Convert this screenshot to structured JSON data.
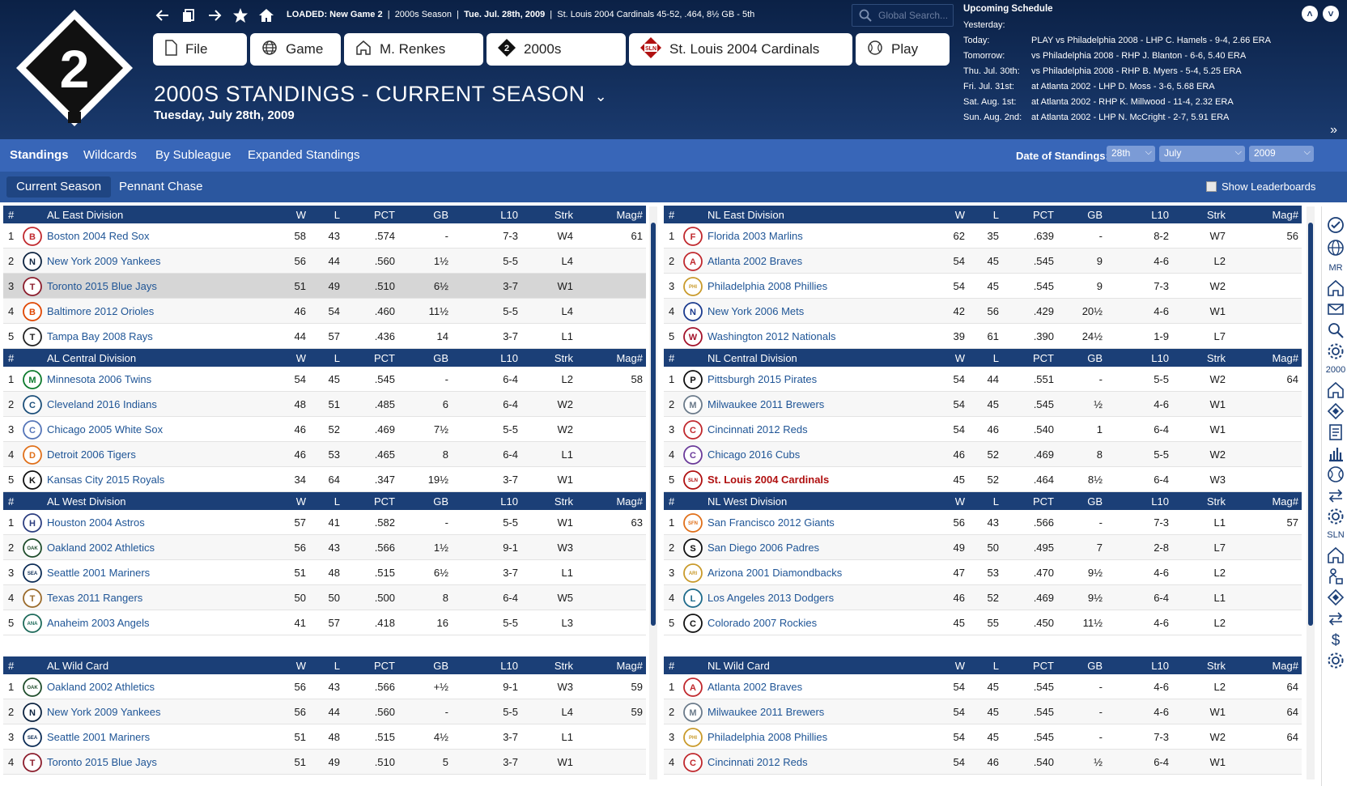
{
  "header": {
    "loaded_label": "LOADED:",
    "loaded_game": "New Game 2",
    "season_text": "2000s  Season",
    "date_text": "Tue. Jul. 28th, 2009",
    "team_record": "St. Louis 2004 Cardinals  45-52, .464, 8½ GB - 5th",
    "search_placeholder": "Global Search...",
    "logo_number": "2",
    "toolbar": [
      "File",
      "Game",
      "M. Renkes",
      "2000s",
      "St. Louis 2004 Cardinals",
      "Play"
    ],
    "page_title": "2000S  STANDINGS - CURRENT SEASON",
    "page_date": "Tuesday, July 28th, 2009"
  },
  "schedule": {
    "title": "Upcoming Schedule",
    "rows": [
      {
        "d": "Yesterday:",
        "g": ""
      },
      {
        "d": "Today:",
        "g": "PLAY vs Philadelphia 2008 - LHP C. Hamels - 9-4, 2.66 ERA"
      },
      {
        "d": "Tomorrow:",
        "g": "vs Philadelphia 2008 - RHP J. Blanton - 6-6, 5.40 ERA"
      },
      {
        "d": "Thu. Jul. 30th:",
        "g": "vs Philadelphia 2008 - RHP B. Myers - 5-4, 5.25 ERA"
      },
      {
        "d": "Fri. Jul. 31st:",
        "g": "at Atlanta 2002 - LHP D. Moss - 3-6, 5.68 ERA"
      },
      {
        "d": "Sat. Aug. 1st:",
        "g": "at Atlanta 2002 - RHP K. Millwood - 11-4, 2.32 ERA"
      },
      {
        "d": "Sun. Aug. 2nd:",
        "g": "at Atlanta 2002 - LHP N. McCright - 2-7, 5.91 ERA"
      }
    ]
  },
  "tabs": {
    "items": [
      "Standings",
      "Wildcards",
      "By Subleague",
      "Expanded Standings"
    ],
    "date_label": "Date of Standings:",
    "day": "28th",
    "month": "July",
    "year": "2009"
  },
  "subtabs": {
    "current": "Current Season",
    "pennant": "Pennant Chase",
    "leaderboards": "Show Leaderboards"
  },
  "cols": {
    "num": "#",
    "w": "W",
    "l": "L",
    "pct": "PCT",
    "gb": "GB",
    "l10": "L10",
    "strk": "Strk",
    "mag": "Mag#"
  },
  "left": [
    {
      "name": "AL East Division",
      "teams": [
        {
          "n": "1",
          "t": "Boston 2004 Red Sox",
          "w": "58",
          "l": "43",
          "p": ".574",
          "gb": "-",
          "l10": "7-3",
          "s": "W4",
          "m": "61",
          "ab": "B",
          "c": "#c0282d"
        },
        {
          "n": "2",
          "t": "New York 2009 Yankees",
          "w": "56",
          "l": "44",
          "p": ".560",
          "gb": "1½",
          "l10": "5-5",
          "s": "L4",
          "m": "",
          "ab": "N",
          "c": "#0c2340"
        },
        {
          "n": "3",
          "t": "Toronto 2015 Blue Jays",
          "w": "51",
          "l": "49",
          "p": ".510",
          "gb": "6½",
          "l10": "3-7",
          "s": "W1",
          "m": "",
          "ab": "T",
          "c": "#8b1c2b",
          "hl": true
        },
        {
          "n": "4",
          "t": "Baltimore 2012 Orioles",
          "w": "46",
          "l": "54",
          "p": ".460",
          "gb": "11½",
          "l10": "5-5",
          "s": "L4",
          "m": "",
          "ab": "B",
          "c": "#df4601"
        },
        {
          "n": "5",
          "t": "Tampa Bay 2008 Rays",
          "w": "44",
          "l": "57",
          "p": ".436",
          "gb": "14",
          "l10": "3-7",
          "s": "L1",
          "m": "",
          "ab": "T",
          "c": "#222"
        }
      ]
    },
    {
      "name": "AL Central Division",
      "teams": [
        {
          "n": "1",
          "t": "Minnesota 2006 Twins",
          "w": "54",
          "l": "45",
          "p": ".545",
          "gb": "-",
          "l10": "6-4",
          "s": "L2",
          "m": "58",
          "ab": "M",
          "c": "#0c7a2c"
        },
        {
          "n": "2",
          "t": "Cleveland 2016 Indians",
          "w": "48",
          "l": "51",
          "p": ".485",
          "gb": "6",
          "l10": "6-4",
          "s": "W2",
          "m": "",
          "ab": "C",
          "c": "#1c4f7a"
        },
        {
          "n": "3",
          "t": "Chicago 2005 White Sox",
          "w": "46",
          "l": "52",
          "p": ".469",
          "gb": "7½",
          "l10": "5-5",
          "s": "W2",
          "m": "",
          "ab": "C",
          "c": "#5575b8"
        },
        {
          "n": "4",
          "t": "Detroit 2006 Tigers",
          "w": "46",
          "l": "53",
          "p": ".465",
          "gb": "8",
          "l10": "6-4",
          "s": "L1",
          "m": "",
          "ab": "D",
          "c": "#e0701a"
        },
        {
          "n": "5",
          "t": "Kansas City 2015 Royals",
          "w": "34",
          "l": "64",
          "p": ".347",
          "gb": "19½",
          "l10": "3-7",
          "s": "W1",
          "m": "",
          "ab": "K",
          "c": "#111"
        }
      ]
    },
    {
      "name": "AL West Division",
      "teams": [
        {
          "n": "1",
          "t": "Houston 2004 Astros",
          "w": "57",
          "l": "41",
          "p": ".582",
          "gb": "-",
          "l10": "5-5",
          "s": "W1",
          "m": "63",
          "ab": "H",
          "c": "#2c3e80"
        },
        {
          "n": "2",
          "t": "Oakland 2002 Athletics",
          "w": "56",
          "l": "43",
          "p": ".566",
          "gb": "1½",
          "l10": "9-1",
          "s": "W3",
          "m": "",
          "ab": "OAK",
          "c": "#1f4d2b"
        },
        {
          "n": "3",
          "t": "Seattle 2001 Mariners",
          "w": "51",
          "l": "48",
          "p": ".515",
          "gb": "6½",
          "l10": "3-7",
          "s": "L1",
          "m": "",
          "ab": "SEA",
          "c": "#0c2c56"
        },
        {
          "n": "4",
          "t": "Texas 2011 Rangers",
          "w": "50",
          "l": "50",
          "p": ".500",
          "gb": "8",
          "l10": "6-4",
          "s": "W5",
          "m": "",
          "ab": "T",
          "c": "#9a6a2a"
        },
        {
          "n": "5",
          "t": "Anaheim 2003 Angels",
          "w": "41",
          "l": "57",
          "p": ".418",
          "gb": "16",
          "l10": "5-5",
          "s": "L3",
          "m": "",
          "ab": "ANA",
          "c": "#1d6a5a"
        }
      ]
    },
    {
      "name": "AL  Wild Card",
      "gap": true,
      "teams": [
        {
          "n": "1",
          "t": "Oakland 2002 Athletics",
          "w": "56",
          "l": "43",
          "p": ".566",
          "gb": "+½",
          "l10": "9-1",
          "s": "W3",
          "m": "59",
          "ab": "OAK",
          "c": "#1f4d2b"
        },
        {
          "n": "2",
          "t": "New York 2009 Yankees",
          "w": "56",
          "l": "44",
          "p": ".560",
          "gb": "-",
          "l10": "5-5",
          "s": "L4",
          "m": "59",
          "ab": "N",
          "c": "#0c2340"
        },
        {
          "n": "3",
          "t": "Seattle 2001 Mariners",
          "w": "51",
          "l": "48",
          "p": ".515",
          "gb": "4½",
          "l10": "3-7",
          "s": "L1",
          "m": "",
          "ab": "SEA",
          "c": "#0c2c56"
        },
        {
          "n": "4",
          "t": "Toronto 2015 Blue Jays",
          "w": "51",
          "l": "49",
          "p": ".510",
          "gb": "5",
          "l10": "3-7",
          "s": "W1",
          "m": "",
          "ab": "T",
          "c": "#8b1c2b"
        }
      ]
    }
  ],
  "right": [
    {
      "name": "NL East Division",
      "teams": [
        {
          "n": "1",
          "t": "Florida 2003 Marlins",
          "w": "62",
          "l": "35",
          "p": ".639",
          "gb": "-",
          "l10": "8-2",
          "s": "W7",
          "m": "56",
          "ab": "F",
          "c": "#c0282d"
        },
        {
          "n": "2",
          "t": "Atlanta 2002 Braves",
          "w": "54",
          "l": "45",
          "p": ".545",
          "gb": "9",
          "l10": "4-6",
          "s": "L2",
          "m": "",
          "ab": "A",
          "c": "#c0282d"
        },
        {
          "n": "3",
          "t": "Philadelphia 2008 Phillies",
          "w": "54",
          "l": "45",
          "p": ".545",
          "gb": "9",
          "l10": "7-3",
          "s": "W2",
          "m": "",
          "ab": "PHI",
          "c": "#c99a2a"
        },
        {
          "n": "4",
          "t": "New York 2006 Mets",
          "w": "42",
          "l": "56",
          "p": ".429",
          "gb": "20½",
          "l10": "4-6",
          "s": "W1",
          "m": "",
          "ab": "N",
          "c": "#1a3a8e"
        },
        {
          "n": "5",
          "t": "Washington 2012 Nationals",
          "w": "39",
          "l": "61",
          "p": ".390",
          "gb": "24½",
          "l10": "1-9",
          "s": "L7",
          "m": "",
          "ab": "W",
          "c": "#a3122a"
        }
      ]
    },
    {
      "name": "NL Central Division",
      "teams": [
        {
          "n": "1",
          "t": "Pittsburgh 2015 Pirates",
          "w": "54",
          "l": "44",
          "p": ".551",
          "gb": "-",
          "l10": "5-5",
          "s": "W2",
          "m": "64",
          "ab": "P",
          "c": "#111"
        },
        {
          "n": "2",
          "t": "Milwaukee 2011 Brewers",
          "w": "54",
          "l": "45",
          "p": ".545",
          "gb": "½",
          "l10": "4-6",
          "s": "W1",
          "m": "",
          "ab": "M",
          "c": "#6a7a8a"
        },
        {
          "n": "3",
          "t": "Cincinnati 2012 Reds",
          "w": "54",
          "l": "46",
          "p": ".540",
          "gb": "1",
          "l10": "6-4",
          "s": "W1",
          "m": "",
          "ab": "C",
          "c": "#c0282d"
        },
        {
          "n": "4",
          "t": "Chicago 2016 Cubs",
          "w": "46",
          "l": "52",
          "p": ".469",
          "gb": "8",
          "l10": "5-5",
          "s": "W2",
          "m": "",
          "ab": "C",
          "c": "#6a3a9a"
        },
        {
          "n": "5",
          "t": "St. Louis 2004 Cardinals",
          "w": "45",
          "l": "52",
          "p": ".464",
          "gb": "8½",
          "l10": "6-4",
          "s": "W3",
          "m": "",
          "ab": "SLN",
          "c": "#b01010",
          "me": true
        }
      ]
    },
    {
      "name": "NL West Division",
      "teams": [
        {
          "n": "1",
          "t": "San Francisco 2012 Giants",
          "w": "56",
          "l": "43",
          "p": ".566",
          "gb": "-",
          "l10": "7-3",
          "s": "L1",
          "m": "57",
          "ab": "SFN",
          "c": "#e0701a"
        },
        {
          "n": "2",
          "t": "San Diego 2006 Padres",
          "w": "49",
          "l": "50",
          "p": ".495",
          "gb": "7",
          "l10": "2-8",
          "s": "L7",
          "m": "",
          "ab": "S",
          "c": "#111"
        },
        {
          "n": "3",
          "t": "Arizona 2001 Diamondbacks",
          "w": "47",
          "l": "53",
          "p": ".470",
          "gb": "9½",
          "l10": "4-6",
          "s": "L2",
          "m": "",
          "ab": "ARI",
          "c": "#c99a2a"
        },
        {
          "n": "4",
          "t": "Los Angeles 2013 Dodgers",
          "w": "46",
          "l": "52",
          "p": ".469",
          "gb": "9½",
          "l10": "6-4",
          "s": "L1",
          "m": "",
          "ab": "L",
          "c": "#1d6a8a"
        },
        {
          "n": "5",
          "t": "Colorado 2007 Rockies",
          "w": "45",
          "l": "55",
          "p": ".450",
          "gb": "11½",
          "l10": "4-6",
          "s": "L2",
          "m": "",
          "ab": "C",
          "c": "#111"
        }
      ]
    },
    {
      "name": "NL  Wild Card",
      "gap": true,
      "teams": [
        {
          "n": "1",
          "t": "Atlanta 2002 Braves",
          "w": "54",
          "l": "45",
          "p": ".545",
          "gb": "-",
          "l10": "4-6",
          "s": "L2",
          "m": "64",
          "ab": "A",
          "c": "#c0282d"
        },
        {
          "n": "2",
          "t": "Milwaukee 2011 Brewers",
          "w": "54",
          "l": "45",
          "p": ".545",
          "gb": "-",
          "l10": "4-6",
          "s": "W1",
          "m": "64",
          "ab": "M",
          "c": "#6a7a8a"
        },
        {
          "n": "3",
          "t": "Philadelphia 2008 Phillies",
          "w": "54",
          "l": "45",
          "p": ".545",
          "gb": "-",
          "l10": "7-3",
          "s": "W2",
          "m": "64",
          "ab": "PHI",
          "c": "#c99a2a"
        },
        {
          "n": "4",
          "t": "Cincinnati 2012 Reds",
          "w": "54",
          "l": "46",
          "p": ".540",
          "gb": "½",
          "l10": "6-4",
          "s": "W1",
          "m": "",
          "ab": "C",
          "c": "#c0282d"
        }
      ]
    }
  ],
  "sidebar": {
    "labels": [
      "MR",
      "2000",
      "SLN"
    ]
  },
  "colors": {
    "header": "#14305e",
    "tab": "#3866b8",
    "subtab": "#2b579f",
    "table_header": "#1b3f77",
    "link": "#1f5596",
    "highlight": "#b01010"
  }
}
